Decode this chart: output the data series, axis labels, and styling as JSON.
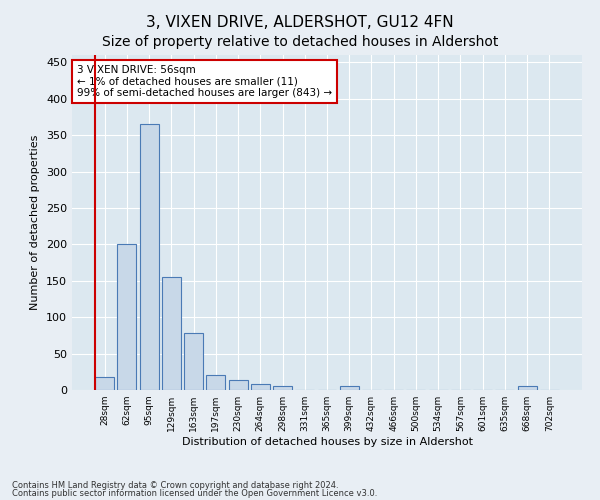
{
  "title": "3, VIXEN DRIVE, ALDERSHOT, GU12 4FN",
  "subtitle": "Size of property relative to detached houses in Aldershot",
  "xlabel": "Distribution of detached houses by size in Aldershot",
  "ylabel": "Number of detached properties",
  "footnote1": "Contains HM Land Registry data © Crown copyright and database right 2024.",
  "footnote2": "Contains public sector information licensed under the Open Government Licence v3.0.",
  "categories": [
    "28sqm",
    "62sqm",
    "95sqm",
    "129sqm",
    "163sqm",
    "197sqm",
    "230sqm",
    "264sqm",
    "298sqm",
    "331sqm",
    "365sqm",
    "399sqm",
    "432sqm",
    "466sqm",
    "500sqm",
    "534sqm",
    "567sqm",
    "601sqm",
    "635sqm",
    "668sqm",
    "702sqm"
  ],
  "values": [
    18,
    200,
    365,
    155,
    78,
    21,
    14,
    8,
    5,
    0,
    0,
    5,
    0,
    0,
    0,
    0,
    0,
    0,
    0,
    5,
    0
  ],
  "bar_color": "#c8d8e8",
  "bar_edge_color": "#4a7ab5",
  "vline_color": "#cc0000",
  "annotation_title": "3 VIXEN DRIVE: 56sqm",
  "annotation_line1": "← 1% of detached houses are smaller (11)",
  "annotation_line2": "99% of semi-detached houses are larger (843) →",
  "annotation_box_color": "#ffffff",
  "annotation_box_edge": "#cc0000",
  "ylim": [
    0,
    460
  ],
  "yticks": [
    0,
    50,
    100,
    150,
    200,
    250,
    300,
    350,
    400,
    450
  ],
  "bg_color": "#e8eef4",
  "plot_bg_color": "#dce8f0",
  "grid_color": "#ffffff",
  "title_fontsize": 11,
  "subtitle_fontsize": 10,
  "vline_bar_index": 0
}
